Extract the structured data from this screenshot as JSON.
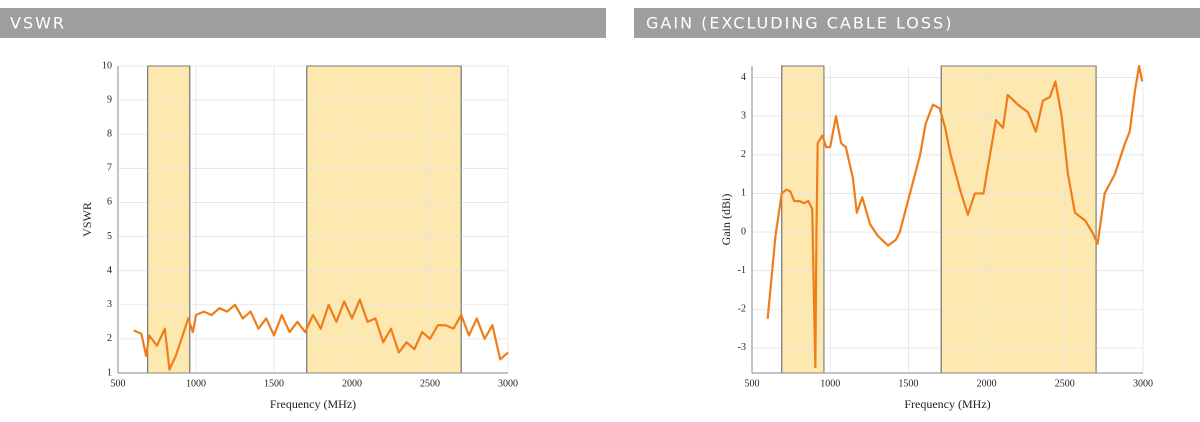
{
  "chart_data": [
    {
      "type": "line",
      "title": "VSWR",
      "x_label": "Frequency (MHz)",
      "y_label": "VSWR",
      "xlim": [
        500,
        3000
      ],
      "xticks": [
        500,
        1000,
        1500,
        2000,
        2500,
        3000
      ],
      "ylim": [
        1,
        10
      ],
      "yticks": [
        1,
        2,
        3,
        4,
        5,
        6,
        7,
        8,
        9,
        10
      ],
      "grid": true,
      "bands": [
        [
          690,
          960
        ],
        [
          1710,
          2700
        ]
      ],
      "band_color": "#fde9b0",
      "color": "#f07d1a",
      "x": [
        600,
        650,
        680,
        700,
        750,
        800,
        830,
        870,
        900,
        950,
        980,
        1000,
        1050,
        1100,
        1150,
        1200,
        1250,
        1300,
        1350,
        1400,
        1450,
        1500,
        1550,
        1600,
        1650,
        1700,
        1750,
        1800,
        1850,
        1900,
        1950,
        2000,
        2050,
        2100,
        2150,
        2200,
        2250,
        2300,
        2350,
        2400,
        2450,
        2500,
        2550,
        2600,
        2650,
        2700,
        2750,
        2800,
        2850,
        2900,
        2950,
        3000
      ],
      "values": [
        2.25,
        2.15,
        1.5,
        2.1,
        1.8,
        2.3,
        1.1,
        1.5,
        1.9,
        2.6,
        2.2,
        2.7,
        2.8,
        2.7,
        2.9,
        2.8,
        3.0,
        2.6,
        2.8,
        2.3,
        2.6,
        2.1,
        2.7,
        2.2,
        2.5,
        2.2,
        2.7,
        2.3,
        3.0,
        2.5,
        3.1,
        2.6,
        3.15,
        2.5,
        2.6,
        1.9,
        2.3,
        1.6,
        1.9,
        1.7,
        2.2,
        2.0,
        2.4,
        2.4,
        2.3,
        2.7,
        2.1,
        2.6,
        2.0,
        2.4,
        1.4,
        1.6
      ]
    },
    {
      "type": "line",
      "title": "GAIN (EXCLUDING CABLE LOSS)",
      "x_label": "Frequency (MHz)",
      "y_label": "Gain (dBi)",
      "xlim": [
        500,
        3000
      ],
      "xticks": [
        500,
        1000,
        1500,
        2000,
        2500,
        3000
      ],
      "ylim": [
        -3.65,
        4.3
      ],
      "yticks": [
        -3,
        -2,
        -1,
        0,
        1,
        2,
        3,
        4
      ],
      "grid": true,
      "bands": [
        [
          690,
          960
        ],
        [
          1710,
          2700
        ]
      ],
      "band_color": "#fde9b0",
      "color": "#f07d1a",
      "x": [
        600,
        650,
        690,
        720,
        745,
        770,
        805,
        830,
        860,
        885,
        895,
        905,
        912,
        920,
        950,
        975,
        1000,
        1037,
        1070,
        1100,
        1145,
        1170,
        1205,
        1255,
        1305,
        1370,
        1420,
        1445,
        1510,
        1575,
        1610,
        1657,
        1700,
        1735,
        1770,
        1830,
        1880,
        1925,
        1980,
        2030,
        2060,
        2105,
        2135,
        2200,
        2265,
        2315,
        2360,
        2405,
        2440,
        2480,
        2520,
        2565,
        2630,
        2675,
        2710,
        2755,
        2820,
        2885,
        2915,
        2950,
        2975,
        2995
      ],
      "values": [
        -2.25,
        -0.1,
        1.0,
        1.1,
        1.05,
        0.8,
        0.8,
        0.75,
        0.8,
        0.6,
        -1.5,
        -3.5,
        0.0,
        2.3,
        2.5,
        2.2,
        2.2,
        3.0,
        2.3,
        2.2,
        1.4,
        0.5,
        0.9,
        0.2,
        -0.1,
        -0.35,
        -0.2,
        0.0,
        1.0,
        2.0,
        2.8,
        3.3,
        3.2,
        2.7,
        2.0,
        1.1,
        0.45,
        1.0,
        1.0,
        2.2,
        2.9,
        2.7,
        3.55,
        3.3,
        3.1,
        2.6,
        3.4,
        3.5,
        3.9,
        3.0,
        1.5,
        0.5,
        0.3,
        0.0,
        -0.3,
        1.0,
        1.5,
        2.3,
        2.6,
        3.7,
        4.3,
        3.9
      ]
    }
  ]
}
